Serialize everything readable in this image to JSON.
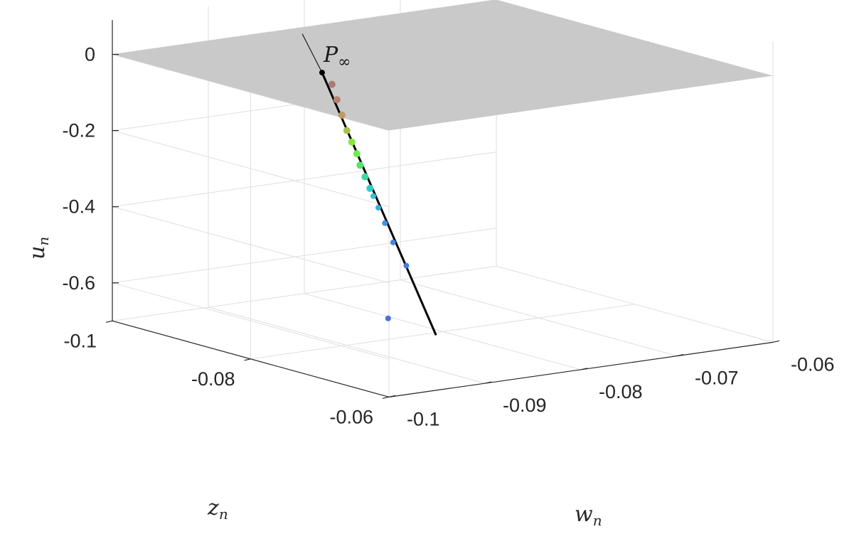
{
  "chart_data": {
    "type": "scatter",
    "view": "3d",
    "grid": true,
    "axes": {
      "w": {
        "label": "w",
        "label_sub": "n",
        "ticks": [
          "-0.1",
          "-0.09",
          "-0.08",
          "-0.07",
          "-0.06"
        ],
        "tick_values": [
          -0.1,
          -0.09,
          -0.08,
          -0.07,
          -0.06
        ],
        "lim": [
          -0.1,
          -0.06
        ]
      },
      "z": {
        "label": "z",
        "label_sub": "n",
        "ticks": [
          "-0.1",
          "-0.08",
          "-0.06"
        ],
        "tick_values": [
          -0.1,
          -0.08,
          -0.06
        ],
        "lim": [
          -0.1,
          -0.06
        ]
      },
      "u": {
        "label": "u",
        "label_sub": "n",
        "ticks": [
          "0",
          "-0.2",
          "-0.4",
          "-0.6"
        ],
        "tick_values": [
          0,
          -0.2,
          -0.4,
          -0.6
        ],
        "lim": [
          -0.7,
          0.09
        ]
      }
    },
    "plane": {
      "u": 0,
      "color": "#c9c9c9"
    },
    "annotation": {
      "label": "P",
      "label_sub": "∞",
      "w": -0.0873,
      "z": -0.0873,
      "u": -0.03
    },
    "line": {
      "color": "#000000",
      "points": [
        {
          "w": -0.0885,
          "z": -0.0885,
          "u": 0.07
        },
        {
          "w": -0.0873,
          "z": -0.0873,
          "u": -0.03
        },
        {
          "w": -0.0804,
          "z": -0.0804,
          "u": -0.71
        }
      ]
    },
    "points": [
      {
        "w": -0.0867,
        "z": -0.0867,
        "u": -0.06,
        "color": "#a87a72"
      },
      {
        "w": -0.0864,
        "z": -0.0864,
        "u": -0.1,
        "color": "#b6846e"
      },
      {
        "w": -0.0861,
        "z": -0.0861,
        "u": -0.14,
        "color": "#bc9b62"
      },
      {
        "w": -0.0858,
        "z": -0.0858,
        "u": -0.18,
        "color": "#a6c24a"
      },
      {
        "w": -0.0855,
        "z": -0.0855,
        "u": -0.21,
        "color": "#86e63c"
      },
      {
        "w": -0.0852,
        "z": -0.0852,
        "u": -0.24,
        "color": "#6cee4a"
      },
      {
        "w": -0.085,
        "z": -0.085,
        "u": -0.27,
        "color": "#50e470"
      },
      {
        "w": -0.0847,
        "z": -0.0847,
        "u": -0.3,
        "color": "#3ed6a0"
      },
      {
        "w": -0.0844,
        "z": -0.0844,
        "u": -0.33,
        "color": "#2ecdc6"
      },
      {
        "w": -0.0842,
        "z": -0.0842,
        "u": -0.35,
        "color": "#2ec4d8"
      },
      {
        "w": -0.0839,
        "z": -0.0839,
        "u": -0.38,
        "color": "#3aaee0"
      },
      {
        "w": -0.0835,
        "z": -0.0835,
        "u": -0.42,
        "color": "#3f94e3"
      },
      {
        "w": -0.083,
        "z": -0.083,
        "u": -0.47,
        "color": "#4484e2"
      },
      {
        "w": -0.0822,
        "z": -0.0822,
        "u": -0.53,
        "color": "#4a78e0"
      },
      {
        "w": -0.0833,
        "z": -0.0833,
        "u": -0.67,
        "color": "#4c6fd8"
      }
    ]
  }
}
